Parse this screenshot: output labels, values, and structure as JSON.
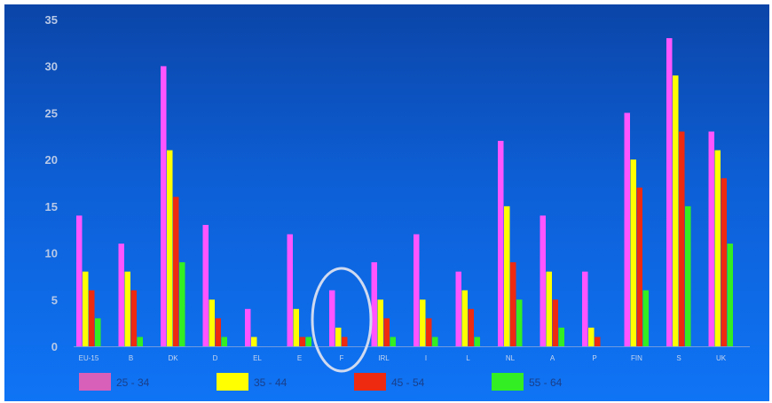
{
  "chart_data": {
    "type": "bar",
    "title": "",
    "xlabel": "",
    "ylabel": "",
    "ylim": [
      0,
      35
    ],
    "yticks": [
      0,
      5,
      10,
      15,
      20,
      25,
      30,
      35
    ],
    "grid": false,
    "legend_position": "bottom",
    "categories": [
      "EU-15",
      "B",
      "DK",
      "D",
      "EL",
      "E",
      "F",
      "IRL",
      "I",
      "L",
      "NL",
      "A",
      "P",
      "FIN",
      "S",
      "UK"
    ],
    "series": [
      {
        "name": "25 - 34",
        "color": "#ff55ff",
        "values": [
          14,
          11,
          30,
          13,
          4,
          12,
          6,
          9,
          12,
          8,
          22,
          14,
          8,
          25,
          33,
          23
        ]
      },
      {
        "name": "35 - 44",
        "color": "#ffff00",
        "values": [
          8,
          8,
          21,
          5,
          1,
          4,
          2,
          5,
          5,
          6,
          15,
          8,
          2,
          20,
          29,
          21
        ]
      },
      {
        "name": "45 - 54",
        "color": "#ee2a10",
        "values": [
          6,
          6,
          16,
          3,
          0,
          1,
          1,
          3,
          3,
          4,
          9,
          5,
          1,
          17,
          23,
          18
        ]
      },
      {
        "name": "55 - 64",
        "color": "#33ee22",
        "values": [
          3,
          1,
          9,
          1,
          0,
          1,
          0,
          1,
          1,
          1,
          5,
          2,
          0,
          6,
          15,
          11
        ]
      }
    ],
    "highlight": {
      "category": "F",
      "shape": "ellipse",
      "color": "#d0daf0"
    },
    "legend_swatch_colors": [
      "#d860b8",
      "#ffff00",
      "#ee2a10",
      "#33ee22"
    ]
  }
}
